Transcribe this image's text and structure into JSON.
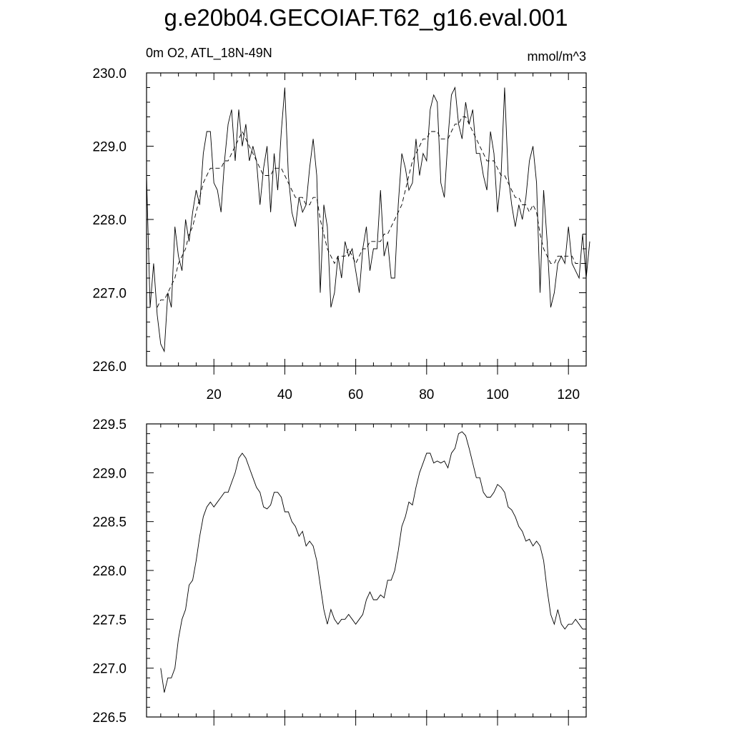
{
  "title": "g.e20b04.GECOIAF.T62_g16.eval.001",
  "left_label": "0m O2, ATL_18N-49N",
  "right_label": "mmol/m^3",
  "chart_data": [
    {
      "type": "line",
      "title": "",
      "xlim": [
        1,
        125
      ],
      "ylim": [
        226.0,
        230.0
      ],
      "x_ticks": [
        20,
        40,
        60,
        80,
        100,
        120
      ],
      "x_tick_labels": [
        "20",
        "40",
        "60",
        "80",
        "100",
        "120"
      ],
      "y_ticks": [
        226.0,
        227.0,
        228.0,
        229.0,
        230.0
      ],
      "y_tick_labels": [
        "226.0",
        "227.0",
        "228.0",
        "229.0",
        "230.0"
      ],
      "x_start": 1,
      "series": [
        {
          "style": "solid",
          "values": [
            228.6,
            226.8,
            227.4,
            226.7,
            226.3,
            226.2,
            227.0,
            226.8,
            227.9,
            227.5,
            227.3,
            228.0,
            227.7,
            228.1,
            228.4,
            228.2,
            228.9,
            229.2,
            229.2,
            228.5,
            228.4,
            228.1,
            228.8,
            229.3,
            229.5,
            228.8,
            229.5,
            229.0,
            229.3,
            228.8,
            229.0,
            228.8,
            228.2,
            228.7,
            229.0,
            228.1,
            228.9,
            228.4,
            229.2,
            229.8,
            228.6,
            228.1,
            227.9,
            228.3,
            228.1,
            228.2,
            228.7,
            229.1,
            228.6,
            227.0,
            228.2,
            227.9,
            226.8,
            227.0,
            227.5,
            227.2,
            227.7,
            227.5,
            227.6,
            227.3,
            227.0,
            227.6,
            227.9,
            227.3,
            227.6,
            227.6,
            228.4,
            227.5,
            227.7,
            227.2,
            227.2,
            228.2,
            228.9,
            228.7,
            228.4,
            228.5,
            229.1,
            228.6,
            228.9,
            228.8,
            229.5,
            229.7,
            229.6,
            228.5,
            228.3,
            229.1,
            229.7,
            229.8,
            229.3,
            229.1,
            229.6,
            229.3,
            229.5,
            228.9,
            228.9,
            228.6,
            228.4,
            229.2,
            228.9,
            228.1,
            228.6,
            229.8,
            228.6,
            228.2,
            227.9,
            228.2,
            228.0,
            228.3,
            228.8,
            229.0,
            228.5,
            227.0,
            228.4,
            227.7,
            226.8,
            227.0,
            227.4,
            227.5,
            227.4,
            227.9,
            227.4,
            227.3,
            227.2,
            227.8,
            227.2,
            227.7
          ]
        },
        {
          "style": "dashed",
          "values": [
            null,
            null,
            null,
            226.8,
            226.9,
            226.9,
            227.0,
            227.1,
            227.2,
            227.4,
            227.5,
            227.6,
            227.8,
            227.9,
            228.1,
            228.3,
            228.5,
            228.6,
            228.7,
            228.7,
            228.7,
            228.7,
            228.8,
            228.8,
            228.9,
            229.0,
            229.1,
            229.2,
            229.1,
            229.0,
            228.9,
            228.8,
            228.7,
            228.6,
            228.6,
            228.6,
            228.7,
            228.7,
            228.7,
            228.6,
            228.5,
            228.4,
            228.3,
            228.3,
            228.3,
            228.2,
            228.2,
            228.3,
            228.3,
            228.0,
            227.8,
            227.6,
            227.5,
            227.4,
            227.5,
            227.5,
            227.5,
            227.6,
            227.5,
            227.4,
            227.5,
            227.6,
            227.6,
            227.7,
            227.7,
            227.7,
            227.7,
            227.8,
            227.8,
            227.9,
            228.0,
            228.1,
            228.2,
            228.4,
            228.6,
            228.8,
            228.9,
            229.0,
            229.1,
            229.1,
            229.2,
            229.2,
            229.2,
            229.1,
            229.1,
            229.1,
            229.2,
            229.3,
            229.3,
            229.4,
            229.4,
            229.3,
            229.2,
            229.1,
            229.0,
            228.9,
            228.8,
            228.8,
            228.8,
            228.7,
            228.6,
            228.6,
            228.5,
            228.4,
            228.3,
            228.3,
            228.2,
            228.2,
            228.1,
            228.2,
            228.1,
            227.8,
            227.6,
            227.5,
            227.4,
            227.4,
            227.5,
            227.5,
            227.5,
            227.5,
            227.5,
            227.4,
            227.4,
            227.4,
            null
          ]
        }
      ]
    },
    {
      "type": "line",
      "title": "",
      "xlim": [
        1,
        125
      ],
      "ylim": [
        226.5,
        229.5
      ],
      "y_ticks": [
        226.5,
        227.0,
        227.5,
        228.0,
        228.5,
        229.0,
        229.5
      ],
      "y_tick_labels": [
        "226.5",
        "227.0",
        "227.5",
        "228.0",
        "228.5",
        "229.0",
        "229.5"
      ],
      "x_start": 5,
      "series": [
        {
          "style": "solid",
          "values": [
            227.0,
            226.75,
            226.9,
            226.9,
            227.0,
            227.3,
            227.5,
            227.6,
            227.85,
            227.9,
            228.1,
            228.35,
            228.55,
            228.65,
            228.7,
            228.65,
            228.7,
            228.75,
            228.8,
            228.8,
            228.9,
            229.0,
            229.15,
            229.2,
            229.15,
            229.05,
            228.95,
            228.85,
            228.8,
            228.65,
            228.63,
            228.67,
            228.8,
            228.8,
            228.75,
            228.6,
            228.6,
            228.5,
            228.45,
            228.35,
            228.4,
            228.25,
            228.3,
            228.25,
            228.1,
            227.85,
            227.6,
            227.45,
            227.6,
            227.5,
            227.45,
            227.5,
            227.5,
            227.55,
            227.5,
            227.45,
            227.5,
            227.55,
            227.7,
            227.78,
            227.7,
            227.7,
            227.75,
            227.72,
            227.9,
            227.9,
            228.0,
            228.2,
            228.45,
            228.55,
            228.7,
            228.67,
            228.85,
            229.0,
            229.1,
            229.2,
            229.2,
            229.1,
            229.12,
            229.1,
            229.12,
            229.05,
            229.2,
            229.25,
            229.4,
            229.42,
            229.38,
            229.25,
            229.1,
            228.95,
            228.95,
            228.8,
            228.75,
            228.75,
            228.8,
            228.88,
            228.85,
            228.8,
            228.65,
            228.62,
            228.55,
            228.45,
            228.4,
            228.3,
            228.32,
            228.25,
            228.3,
            228.25,
            228.1,
            227.8,
            227.55,
            227.45,
            227.6,
            227.45,
            227.4,
            227.45,
            227.45,
            227.5,
            227.45,
            227.4
          ]
        }
      ]
    }
  ]
}
